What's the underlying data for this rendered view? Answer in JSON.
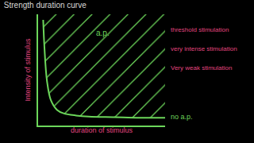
{
  "chart_data": {
    "type": "line",
    "title": "Strength duration curve",
    "x_label": "duration of stimulus",
    "y_label": "Intensity of stimulus",
    "x": [
      0.4,
      0.5,
      0.7,
      1,
      1.5,
      2,
      3,
      4,
      6,
      8,
      10
    ],
    "values": [
      9.5,
      7,
      4,
      2.3,
      1.4,
      1.1,
      0.9,
      0.8,
      0.75,
      0.7,
      0.7
    ],
    "color": "#6cd65a",
    "xlim": [
      0,
      10
    ],
    "ylim": [
      0,
      10
    ],
    "xticks": [],
    "yticks": [],
    "tick_labels": false,
    "grid": false,
    "annotations": [
      "a.p.",
      "no a.p.",
      "threshold stimulation",
      "very intense stimulation",
      "Very weak stimulation"
    ]
  }
}
